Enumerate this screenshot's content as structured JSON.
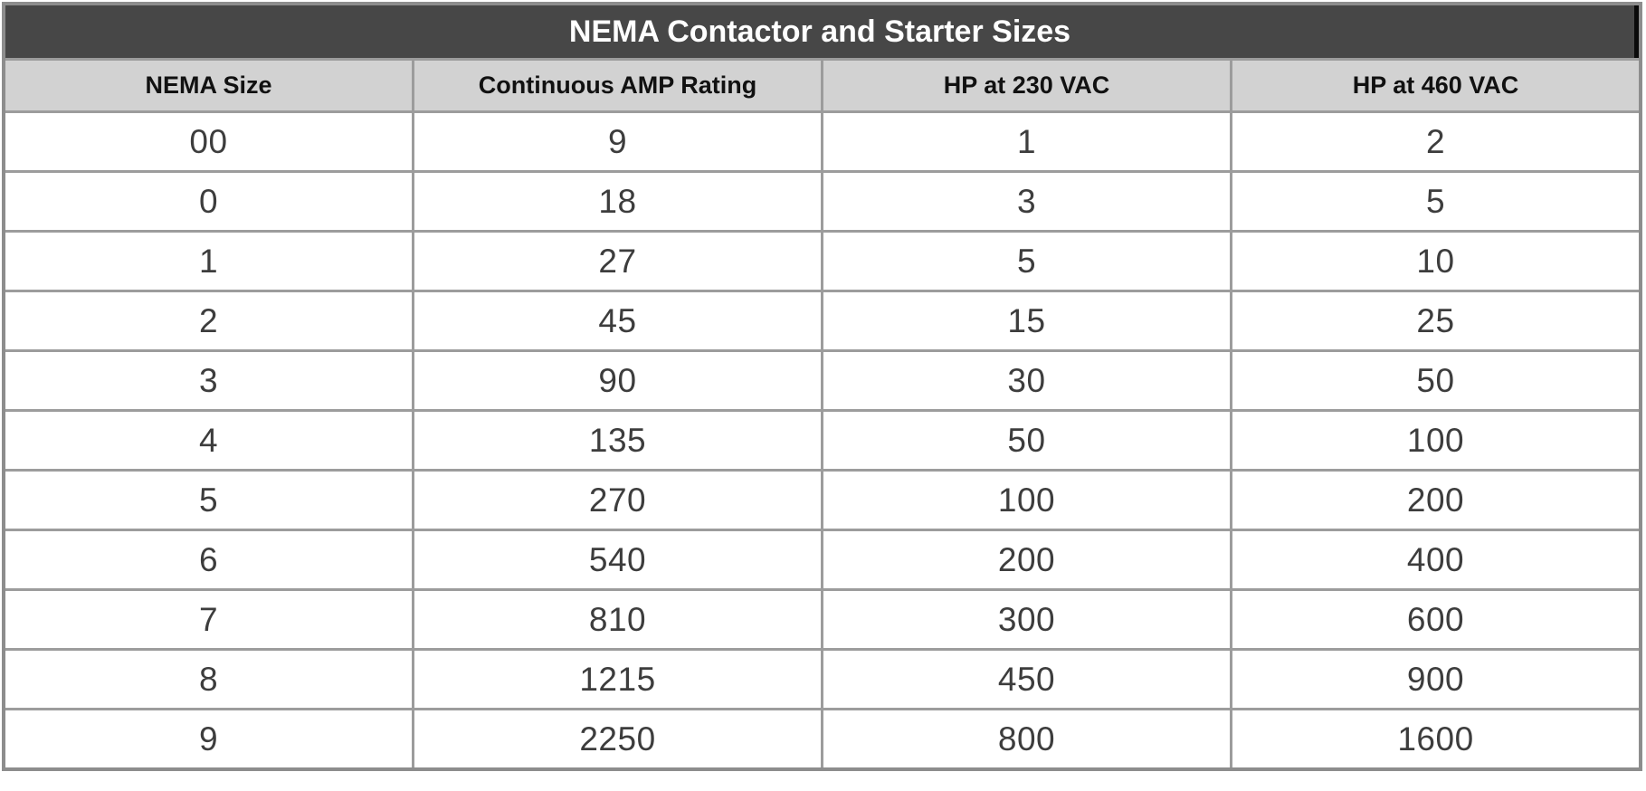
{
  "table": {
    "title": "NEMA Contactor and Starter Sizes",
    "headers": [
      "NEMA Size",
      "Continuous AMP Rating",
      "HP at 230 VAC",
      "HP at 460 VAC"
    ],
    "rows": [
      [
        "00",
        "9",
        "1",
        "2"
      ],
      [
        "0",
        "18",
        "3",
        "5"
      ],
      [
        "1",
        "27",
        "5",
        "10"
      ],
      [
        "2",
        "45",
        "15",
        "25"
      ],
      [
        "3",
        "90",
        "30",
        "50"
      ],
      [
        "4",
        "135",
        "50",
        "100"
      ],
      [
        "5",
        "270",
        "100",
        "200"
      ],
      [
        "6",
        "540",
        "200",
        "400"
      ],
      [
        "7",
        "810",
        "300",
        "600"
      ],
      [
        "8",
        "1215",
        "450",
        "900"
      ],
      [
        "9",
        "2250",
        "800",
        "1600"
      ]
    ]
  },
  "colors": {
    "title_bg": "#474747",
    "title_text": "#ffffff",
    "header_bg": "#d2d2d2",
    "header_text": "#111111",
    "outer_border": "#8d8d8d",
    "inner_border": "#9c9c9c",
    "cell_bg": "#ffffff",
    "cell_text": "#3d3d3d"
  },
  "chart_data": {
    "type": "table",
    "title": "NEMA Contactor and Starter Sizes",
    "columns": [
      "NEMA Size",
      "Continuous AMP Rating",
      "HP at 230 VAC",
      "HP at 460 VAC"
    ],
    "rows": [
      [
        "00",
        9,
        1,
        2
      ],
      [
        "0",
        18,
        3,
        5
      ],
      [
        "1",
        27,
        5,
        10
      ],
      [
        "2",
        45,
        15,
        25
      ],
      [
        "3",
        90,
        30,
        50
      ],
      [
        "4",
        135,
        50,
        100
      ],
      [
        "5",
        270,
        100,
        200
      ],
      [
        "6",
        540,
        200,
        400
      ],
      [
        "7",
        810,
        300,
        600
      ],
      [
        "8",
        1215,
        450,
        900
      ],
      [
        "9",
        2250,
        800,
        1600
      ]
    ]
  }
}
